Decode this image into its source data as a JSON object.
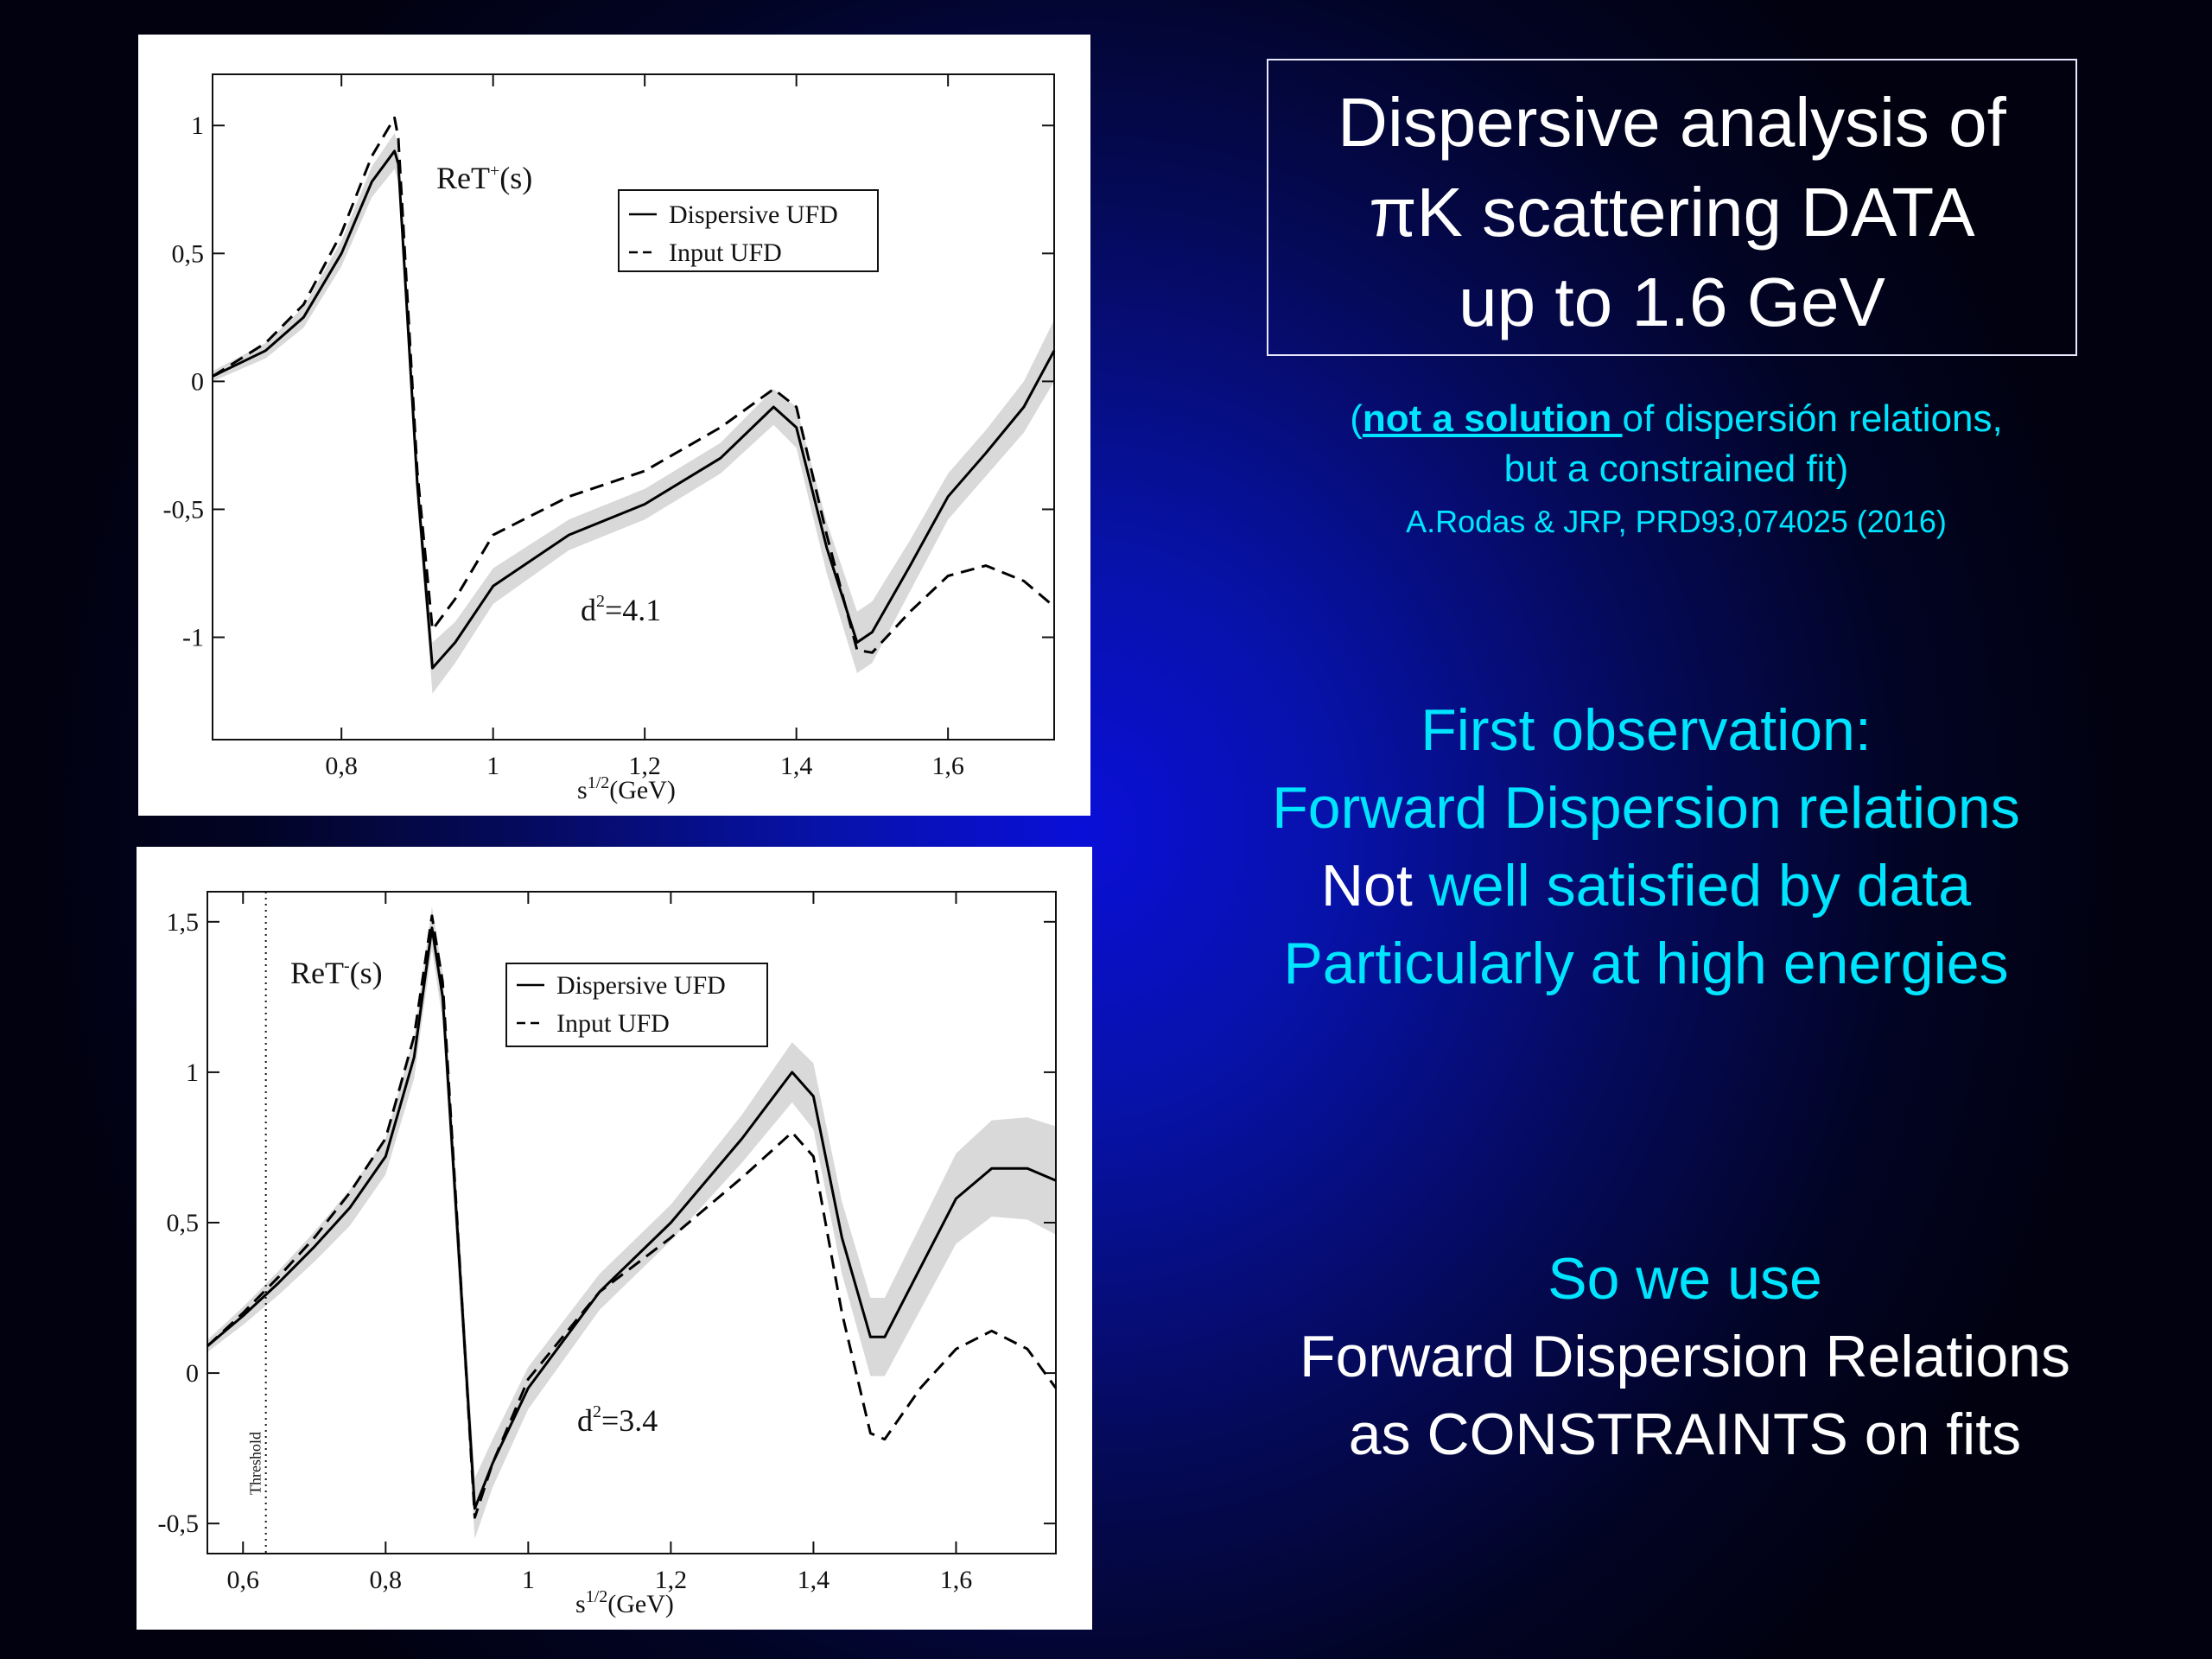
{
  "title_box": {
    "line1": "Dispersive analysis of",
    "line2": "πK scattering DATA",
    "line3": "up to 1.6 GeV"
  },
  "note": {
    "open": "(",
    "emph": "not a solution ",
    "rest1": "of dispersión relations,",
    "line2": "but a constrained fit)",
    "ref": "A.Rodas & JRP, PRD93,074025 (2016)"
  },
  "observation": {
    "line1": "First observation:",
    "line2": "Forward Dispersion relations",
    "line3_white": "Not",
    "line3_cyan": " well satisfied by data",
    "line4": "Particularly at high energies"
  },
  "conclusion": {
    "line1": "So we use",
    "line2": "Forward Dispersion Relations",
    "line3": "as CONSTRAINTS on fits"
  },
  "colors": {
    "cyan": "#00e5ff",
    "band": "#d9d9d9",
    "curve": "#000000"
  },
  "chart_data": [
    {
      "type": "line",
      "label_main": "ReT",
      "label_sup": "+",
      "label_arg": "(s)",
      "annotation_main": "d",
      "annotation_sup": "2",
      "annotation_val": "=4.1",
      "xlabel_pre": "s",
      "xlabel_sup": "1/2",
      "xlabel_post": "(GeV)",
      "xlim": [
        0.63,
        1.74
      ],
      "ylim": [
        -1.4,
        1.2
      ],
      "x_ticks": [
        0.8,
        1,
        1.2,
        1.4,
        1.6
      ],
      "x_tick_labels": [
        "0,8",
        "1",
        "1,2",
        "1,4",
        "1,6"
      ],
      "y_ticks": [
        1,
        0.5,
        0,
        -0.5,
        -1
      ],
      "y_tick_labels": [
        "1",
        "0,5",
        "0",
        "-0,5",
        "-1"
      ],
      "legend": [
        "Dispersive UFD",
        "Input UFD"
      ],
      "legend_position": "top-right",
      "series": [
        {
          "name": "Dispersive UFD",
          "style": "solid",
          "x": [
            0.63,
            0.7,
            0.75,
            0.8,
            0.84,
            0.87,
            0.875,
            0.9,
            0.92,
            0.95,
            1.0,
            1.1,
            1.2,
            1.3,
            1.37,
            1.4,
            1.44,
            1.48,
            1.5,
            1.55,
            1.6,
            1.65,
            1.7,
            1.74
          ],
          "y": [
            0.02,
            0.12,
            0.25,
            0.5,
            0.78,
            0.9,
            0.85,
            -0.4,
            -1.12,
            -1.02,
            -0.8,
            -0.6,
            -0.48,
            -0.3,
            -0.1,
            -0.18,
            -0.65,
            -1.02,
            -0.98,
            -0.72,
            -0.45,
            -0.28,
            -0.1,
            0.12
          ]
        },
        {
          "name": "Input UFD",
          "style": "dashed",
          "x": [
            0.63,
            0.7,
            0.75,
            0.8,
            0.84,
            0.87,
            0.875,
            0.9,
            0.92,
            0.95,
            1.0,
            1.1,
            1.2,
            1.3,
            1.37,
            1.4,
            1.44,
            1.48,
            1.5,
            1.55,
            1.6,
            1.65,
            1.7,
            1.74
          ],
          "y": [
            0.02,
            0.15,
            0.3,
            0.58,
            0.88,
            1.03,
            0.95,
            -0.35,
            -0.97,
            -0.85,
            -0.6,
            -0.45,
            -0.35,
            -0.18,
            -0.03,
            -0.1,
            -0.6,
            -1.05,
            -1.06,
            -0.9,
            -0.76,
            -0.72,
            -0.78,
            -0.88
          ]
        }
      ],
      "band_halfwidth": [
        0.02,
        0.03,
        0.04,
        0.05,
        0.06,
        0.07,
        0.07,
        0.08,
        0.1,
        0.08,
        0.07,
        0.06,
        0.06,
        0.06,
        0.07,
        0.08,
        0.1,
        0.12,
        0.12,
        0.1,
        0.09,
        0.09,
        0.1,
        0.12
      ]
    },
    {
      "type": "line",
      "label_main": "ReT",
      "label_sup": "-",
      "label_arg": "(s)",
      "annotation_main": "d",
      "annotation_sup": "2",
      "annotation_val": "=3.4",
      "threshold_label": "Threshold",
      "threshold_x": 0.632,
      "xlabel_pre": "s",
      "xlabel_sup": "1/2",
      "xlabel_post": "(GeV)",
      "xlim": [
        0.55,
        1.74
      ],
      "ylim": [
        -0.6,
        1.6
      ],
      "x_ticks": [
        0.6,
        0.8,
        1,
        1.2,
        1.4,
        1.6
      ],
      "x_tick_labels": [
        "0,6",
        "0,8",
        "1",
        "1,2",
        "1,4",
        "1,6"
      ],
      "y_ticks": [
        1.5,
        1,
        0.5,
        0,
        -0.5
      ],
      "y_tick_labels": [
        "1,5",
        "1",
        "0,5",
        "0",
        "-0,5"
      ],
      "legend": [
        "Dispersive UFD",
        "Input UFD"
      ],
      "legend_position": "top-center",
      "series": [
        {
          "name": "Dispersive UFD",
          "style": "solid",
          "x": [
            0.55,
            0.6,
            0.65,
            0.7,
            0.75,
            0.8,
            0.84,
            0.865,
            0.88,
            0.9,
            0.925,
            0.95,
            1.0,
            1.1,
            1.2,
            1.3,
            1.37,
            1.4,
            1.44,
            1.48,
            1.5,
            1.55,
            1.6,
            1.65,
            1.7,
            1.74
          ],
          "y": [
            0.09,
            0.19,
            0.3,
            0.42,
            0.55,
            0.72,
            1.05,
            1.48,
            1.25,
            0.5,
            -0.45,
            -0.3,
            -0.05,
            0.27,
            0.5,
            0.78,
            1.0,
            0.92,
            0.45,
            0.12,
            0.12,
            0.35,
            0.58,
            0.68,
            0.68,
            0.64
          ]
        },
        {
          "name": "Input UFD",
          "style": "dashed",
          "x": [
            0.55,
            0.6,
            0.65,
            0.7,
            0.75,
            0.8,
            0.84,
            0.865,
            0.88,
            0.9,
            0.925,
            0.95,
            1.0,
            1.1,
            1.2,
            1.3,
            1.37,
            1.4,
            1.44,
            1.48,
            1.5,
            1.55,
            1.6,
            1.65,
            1.7,
            1.74
          ],
          "y": [
            0.09,
            0.2,
            0.32,
            0.45,
            0.6,
            0.78,
            1.12,
            1.52,
            1.3,
            0.52,
            -0.48,
            -0.3,
            -0.02,
            0.27,
            0.45,
            0.65,
            0.8,
            0.72,
            0.2,
            -0.2,
            -0.22,
            -0.05,
            0.08,
            0.14,
            0.08,
            -0.05
          ]
        }
      ],
      "band_halfwidth": [
        0.02,
        0.03,
        0.04,
        0.05,
        0.06,
        0.06,
        0.07,
        0.07,
        0.08,
        0.1,
        0.1,
        0.08,
        0.07,
        0.06,
        0.06,
        0.08,
        0.1,
        0.11,
        0.12,
        0.13,
        0.13,
        0.14,
        0.15,
        0.16,
        0.17,
        0.18
      ]
    }
  ]
}
